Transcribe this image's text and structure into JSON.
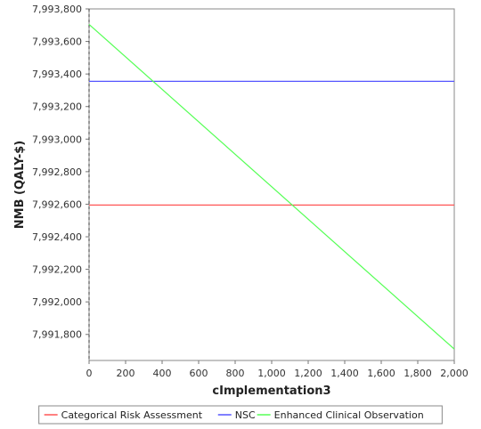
{
  "chart_data": {
    "type": "line",
    "title": "",
    "xlabel": "cImplementation3",
    "ylabel": "NMB (QALY-$)",
    "xlim": [
      0,
      2000
    ],
    "ylim": [
      7991640,
      7993800
    ],
    "x_ticks": [
      0,
      200,
      400,
      600,
      800,
      1000,
      1200,
      1400,
      1600,
      1800,
      2000
    ],
    "x_tick_labels": [
      "0",
      "200",
      "400",
      "600",
      "800",
      "1,000",
      "1,200",
      "1,400",
      "1,600",
      "1,800",
      "2,000"
    ],
    "y_ticks": [
      7991800,
      7992000,
      7992200,
      7992400,
      7992600,
      7992800,
      7993000,
      7993200,
      7993400,
      7993600,
      7993800
    ],
    "y_tick_labels": [
      "7,991,800",
      "7,992,000",
      "7,992,200",
      "7,992,400",
      "7,992,600",
      "7,992,800",
      "7,993,000",
      "7,993,200",
      "7,993,400",
      "7,993,600",
      "7,993,800"
    ],
    "grid": false,
    "legend_position": "bottom",
    "series": [
      {
        "name": "Categorical Risk Assessment",
        "color": "#ff5555",
        "x": [
          0,
          2000
        ],
        "y": [
          7992595,
          7992595
        ]
      },
      {
        "name": "NSC",
        "color": "#5555ff",
        "x": [
          0,
          2000
        ],
        "y": [
          7993355,
          7993355
        ]
      },
      {
        "name": "Enhanced Clinical Observation",
        "color": "#55ff55",
        "x": [
          0,
          2000
        ],
        "y": [
          7993705,
          7991710
        ]
      }
    ]
  }
}
